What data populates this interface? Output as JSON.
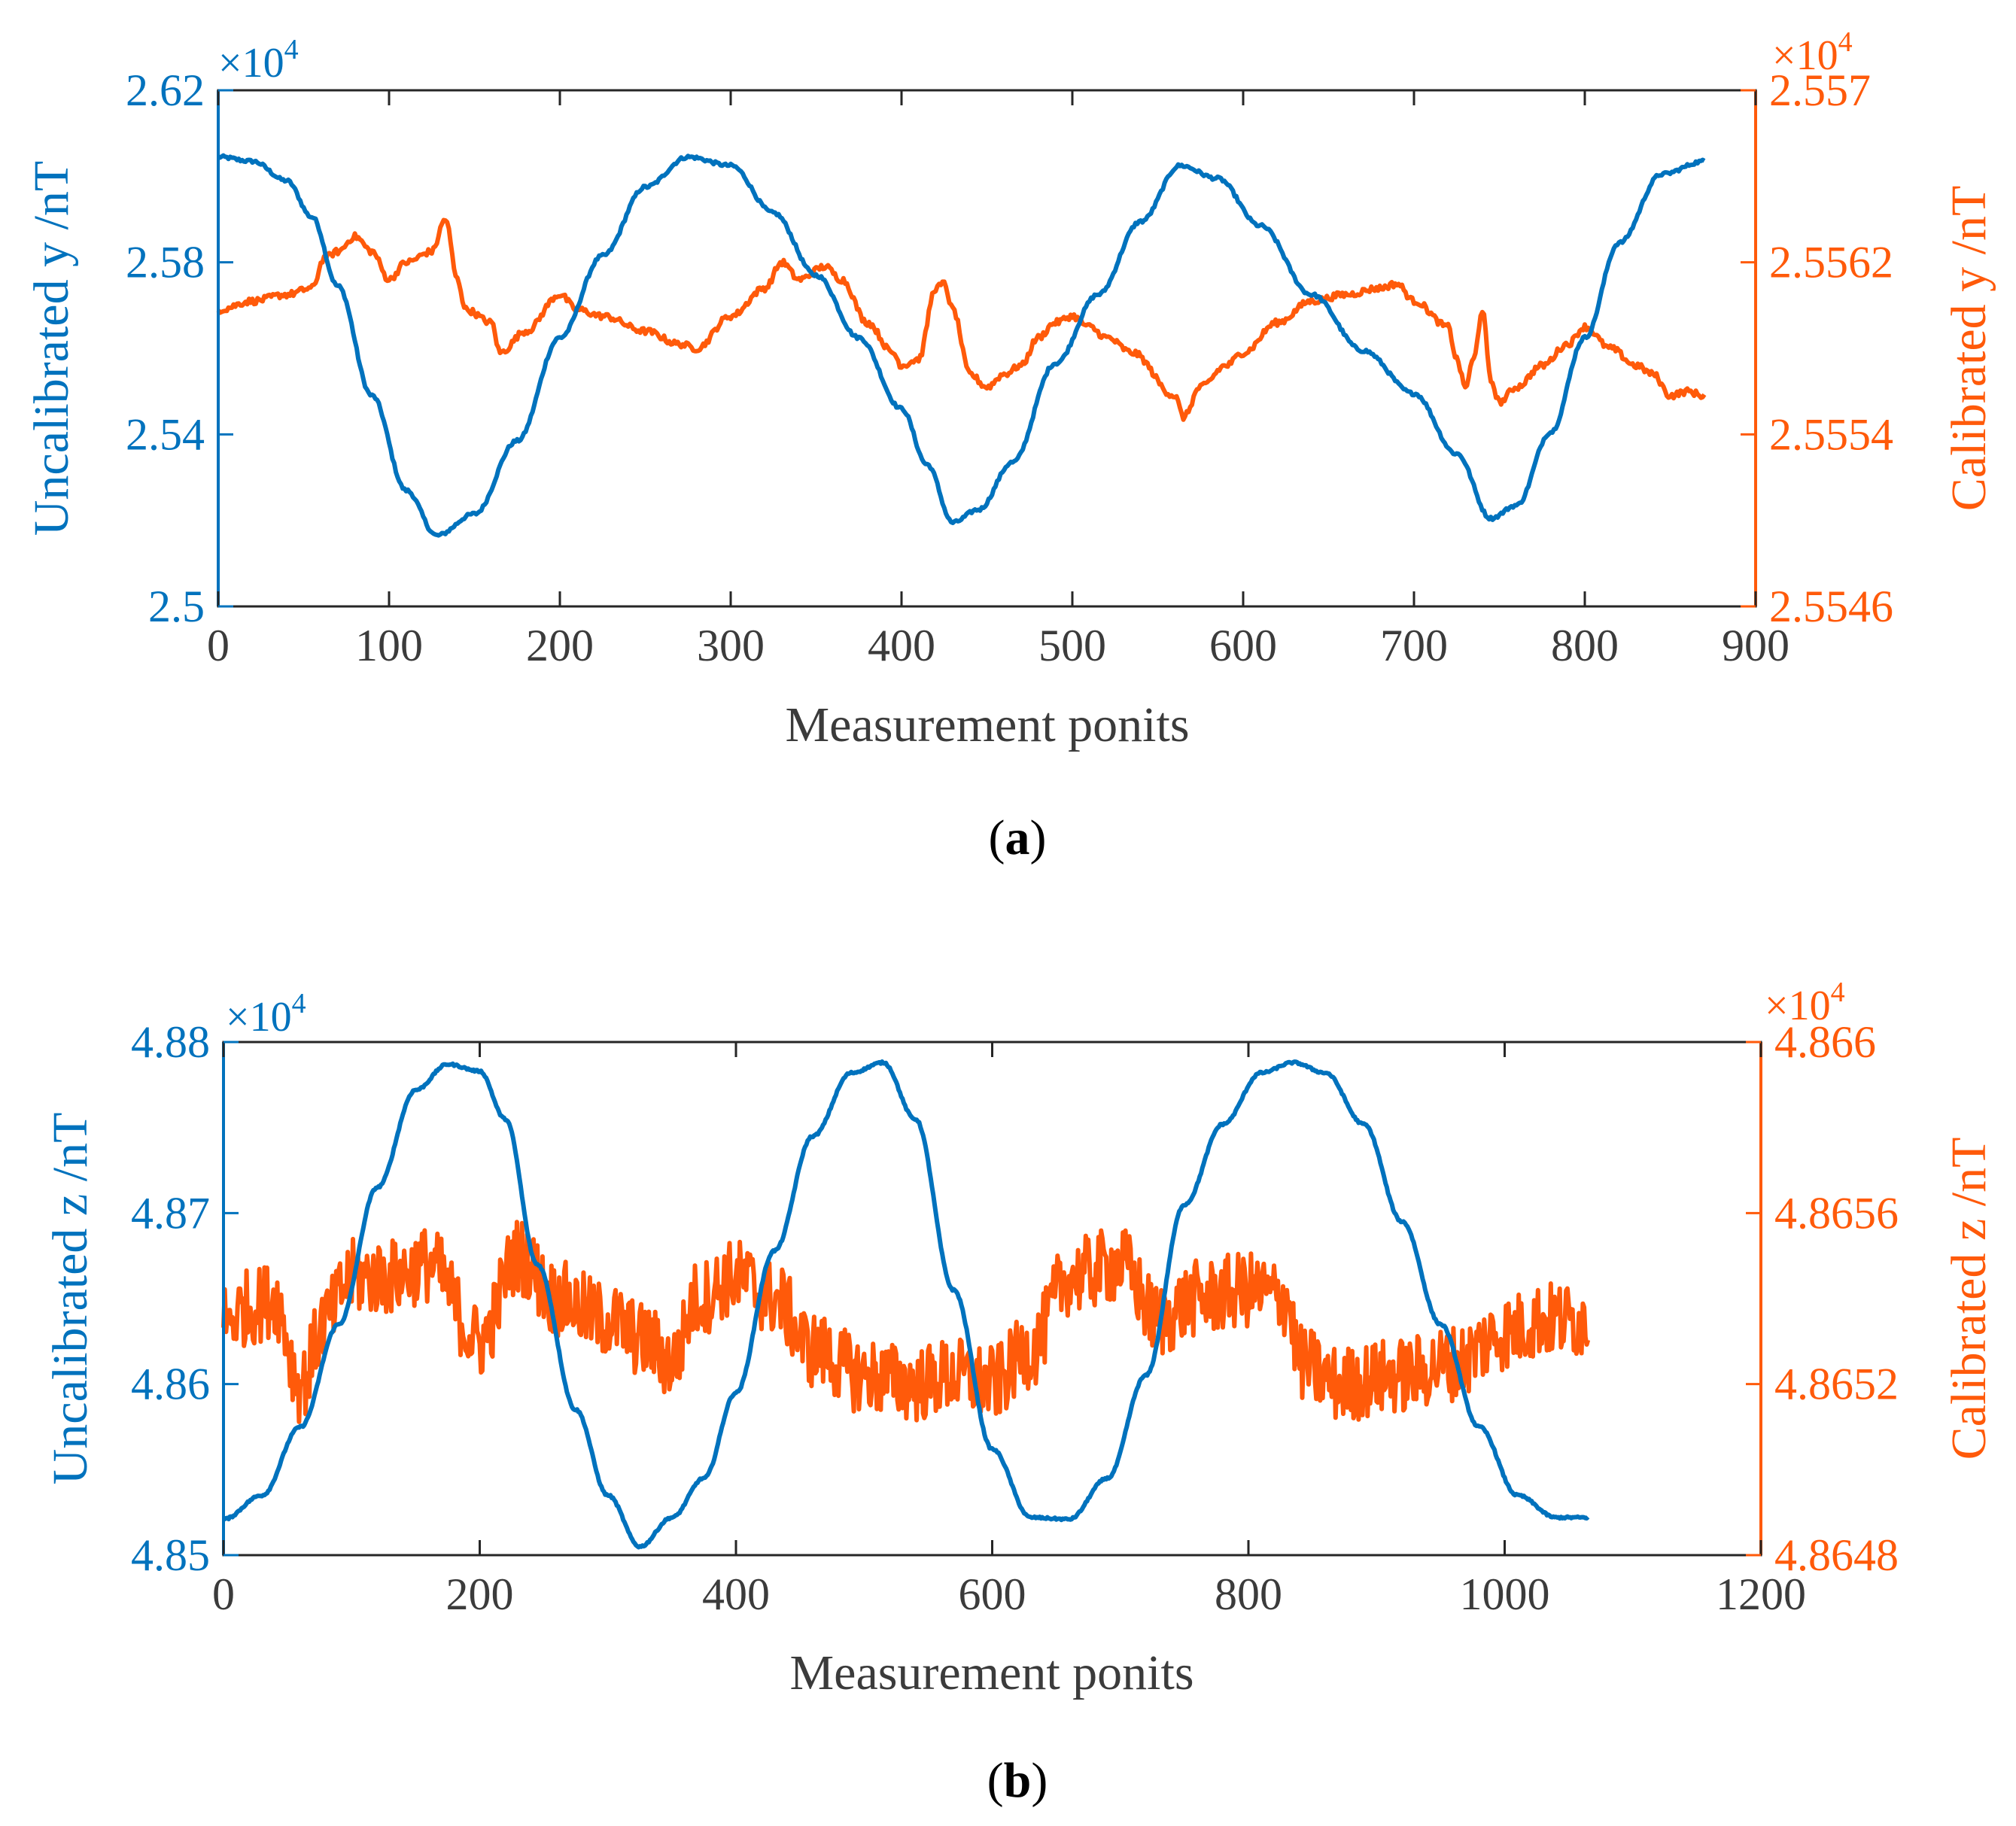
{
  "colors": {
    "left": "#0072BD",
    "right": "#FF5A0A",
    "axis": "#262626",
    "text_dark": "#3b3b3b"
  },
  "chart_data": [
    {
      "type": "line",
      "panel_label": "a",
      "xlabel": "Measurement ponits",
      "ylabel_left": "Uncalibrated y /nT",
      "ylabel_right": "Calibrated y /nT",
      "left_exponent": "×10",
      "left_exponent_power": "4",
      "right_exponent": "×10",
      "right_exponent_power": "4",
      "xlim": [
        0,
        900
      ],
      "xticks": [
        0,
        100,
        200,
        300,
        400,
        500,
        600,
        700,
        800,
        900
      ],
      "xtick_labels": [
        "0",
        "100",
        "200",
        "300",
        "400",
        "500",
        "600",
        "700",
        "800",
        "900"
      ],
      "ylim_left": [
        2.5,
        2.62
      ],
      "yticks_left": [
        2.5,
        2.54,
        2.58,
        2.62
      ],
      "ytick_labels_left": [
        "2.5",
        "2.54",
        "2.58",
        "2.62"
      ],
      "ylim_right": [
        2.5546,
        2.557
      ],
      "yticks_right": [
        2.5546,
        2.5554,
        2.5562,
        2.557
      ],
      "ytick_labels_right": [
        "2.5546",
        "2.5554",
        "2.5562",
        "2.557"
      ],
      "series": [
        {
          "name": "Uncalibrated y",
          "axis": "left",
          "noise": 0.0004,
          "x": [
            0,
            20,
            40,
            55,
            70,
            90,
            110,
            128,
            150,
            175,
            200,
            225,
            250,
            275,
            300,
            325,
            350,
            375,
            400,
            415,
            430,
            445,
            465,
            490,
            515,
            540,
            563,
            585,
            610,
            640,
            670,
            700,
            725,
            745,
            760,
            780,
            800,
            820,
            845,
            870
          ],
          "values": [
            2.6045,
            2.6035,
            2.599,
            2.5905,
            2.5745,
            2.549,
            2.527,
            2.5165,
            2.5215,
            2.5385,
            2.5625,
            2.5815,
            2.5975,
            2.6045,
            2.6025,
            2.5915,
            2.577,
            2.5625,
            2.546,
            2.533,
            2.5195,
            2.5225,
            2.5335,
            2.5565,
            2.5725,
            2.5895,
            2.6025,
            2.5995,
            2.5885,
            2.5725,
            2.5595,
            2.5495,
            2.5355,
            2.5205,
            2.5235,
            2.5405,
            2.5625,
            2.5845,
            2.6005,
            2.6035
          ]
        },
        {
          "name": "Calibrated y",
          "axis": "right",
          "noise": 1.5e-05,
          "x": [
            0,
            20,
            40,
            55,
            62,
            70,
            80,
            90,
            100,
            110,
            125,
            133,
            140,
            145,
            160,
            165,
            180,
            200,
            210,
            225,
            250,
            270,
            280,
            300,
            320,
            330,
            340,
            355,
            365,
            380,
            395,
            400,
            410,
            420,
            425,
            430,
            440,
            450,
            460,
            470,
            480,
            490,
            500,
            510,
            520,
            535,
            560,
            565,
            575,
            590,
            600,
            620,
            640,
            660,
            680,
            690,
            700,
            720,
            725,
            730,
            735,
            740,
            745,
            750,
            760,
            775,
            790,
            800,
            815,
            830,
            840,
            850,
            860,
            870
          ],
          "values": [
            2.55598,
            2.55602,
            2.55605,
            2.55608,
            2.55622,
            2.55625,
            2.55632,
            2.55625,
            2.55612,
            2.5562,
            2.55625,
            2.5564,
            2.55612,
            2.55598,
            2.55592,
            2.55578,
            2.55588,
            2.55605,
            2.55598,
            2.55595,
            2.55588,
            2.55582,
            2.5558,
            2.55595,
            2.55608,
            2.5562,
            2.55612,
            2.55618,
            2.55612,
            2.55592,
            2.55578,
            2.55572,
            2.55575,
            2.55608,
            2.5561,
            2.55598,
            2.55568,
            2.55562,
            2.55568,
            2.55572,
            2.55585,
            2.55592,
            2.55595,
            2.5559,
            2.55585,
            2.55578,
            2.55558,
            2.55548,
            2.55562,
            2.55572,
            2.55578,
            2.55592,
            2.55602,
            2.55605,
            2.55608,
            2.5561,
            2.55602,
            2.5559,
            2.55575,
            2.55562,
            2.55575,
            2.55598,
            2.55565,
            2.55555,
            2.55562,
            2.55572,
            2.55582,
            2.5559,
            2.5558,
            2.55572,
            2.55568,
            2.55558,
            2.5556,
            2.55558
          ]
        }
      ]
    },
    {
      "type": "line",
      "panel_label": "b",
      "xlabel": "Measurement ponits",
      "ylabel_left": "Uncalibrated z /nT",
      "ylabel_right": "Calibrated z /nT",
      "left_exponent": "×10",
      "left_exponent_power": "4",
      "right_exponent": "×10",
      "right_exponent_power": "4",
      "xlim": [
        0,
        1200
      ],
      "xticks": [
        0,
        200,
        400,
        600,
        800,
        1000,
        1200
      ],
      "xtick_labels": [
        "0",
        "200",
        "400",
        "600",
        "800",
        "1000",
        "1200"
      ],
      "ylim_left": [
        4.85,
        4.88
      ],
      "yticks_left": [
        4.85,
        4.86,
        4.87,
        4.88
      ],
      "ytick_labels_left": [
        "4.85",
        "4.86",
        "4.87",
        "4.88"
      ],
      "ylim_right": [
        4.8648,
        4.866
      ],
      "yticks_right": [
        4.8648,
        4.8652,
        4.8656,
        4.866
      ],
      "ytick_labels_right": [
        "4.8648",
        "4.8652",
        "4.8656",
        "4.866"
      ],
      "series": [
        {
          "name": "Uncalibrated z",
          "axis": "left",
          "noise": 6e-05,
          "x": [
            0,
            30,
            60,
            90,
            120,
            150,
            175,
            200,
            220,
            245,
            275,
            300,
            325,
            350,
            375,
            400,
            430,
            460,
            490,
            515,
            540,
            570,
            600,
            630,
            660,
            690,
            720,
            750,
            780,
            810,
            835,
            860,
            890,
            920,
            950,
            980,
            1010,
            1040,
            1065
          ],
          "values": [
            4.8521,
            4.8535,
            4.8575,
            4.8635,
            4.8715,
            4.8772,
            4.8787,
            4.8783,
            4.8755,
            4.867,
            4.8585,
            4.8535,
            4.8505,
            4.8522,
            4.8545,
            4.8595,
            4.8678,
            4.8745,
            4.8782,
            4.8788,
            4.8755,
            4.8655,
            4.8562,
            4.8522,
            4.8521,
            4.8545,
            4.8605,
            4.8705,
            4.8752,
            4.8782,
            4.8788,
            4.8782,
            4.8752,
            4.8695,
            4.8635,
            4.8575,
            4.8535,
            4.8522,
            4.8522
          ]
        },
        {
          "name": "Calibrated z",
          "axis": "right",
          "noise": 9e-05,
          "x": [
            0,
            20,
            40,
            60,
            80,
            100,
            130,
            160,
            200,
            230,
            260,
            300,
            330,
            350,
            370,
            400,
            430,
            460,
            500,
            540,
            570,
            600,
            630,
            660,
            700,
            730,
            760,
            800,
            830,
            840,
            870,
            920,
            960,
            1000,
            1030,
            1065
          ],
          "values": [
            4.86535,
            4.86538,
            4.8654,
            4.8652,
            4.86535,
            4.86545,
            4.86545,
            4.86548,
            4.8653,
            4.8655,
            4.8654,
            4.86535,
            4.8653,
            4.86525,
            4.8654,
            4.86545,
            4.8654,
            4.86528,
            4.86522,
            4.8652,
            4.86522,
            4.8652,
            4.86528,
            4.86545,
            4.86548,
            4.86535,
            4.8654,
            4.86542,
            4.8654,
            4.86525,
            4.8652,
            4.86522,
            4.86525,
            4.86532,
            4.86535,
            4.86535
          ]
        }
      ]
    }
  ]
}
